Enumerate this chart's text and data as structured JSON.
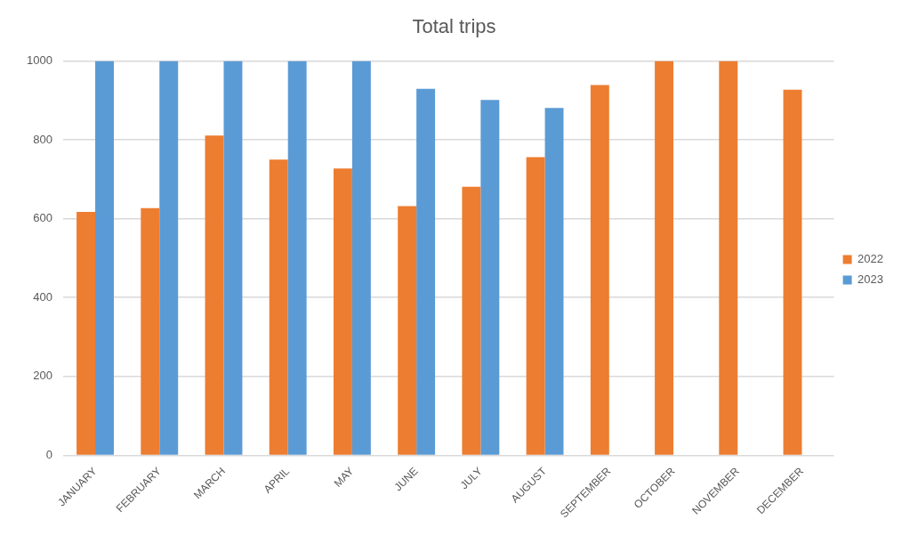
{
  "chart_data": {
    "type": "bar",
    "title": "Total trips",
    "categories": [
      "JANUARY",
      "FEBRUARY",
      "MARCH",
      "APRIL",
      "MAY",
      "JUNE",
      "JULY",
      "AUGUST",
      "SEPTEMBER",
      "OCTOBER",
      "NOVEMBER",
      "DECEMBER"
    ],
    "series": [
      {
        "name": "2022",
        "color": "#ed7d31",
        "values": [
          617,
          627,
          811,
          750,
          727,
          632,
          681,
          756,
          939,
          1000,
          1000,
          927
        ]
      },
      {
        "name": "2023",
        "color": "#5b9bd5",
        "values": [
          1000,
          1000,
          1000,
          1000,
          1000,
          929,
          901,
          881,
          0,
          0,
          0,
          0
        ]
      }
    ],
    "ylim": [
      0,
      1000
    ],
    "yticks": [
      0,
      200,
      400,
      600,
      800,
      1000
    ],
    "grid": "y",
    "legend": "right"
  }
}
